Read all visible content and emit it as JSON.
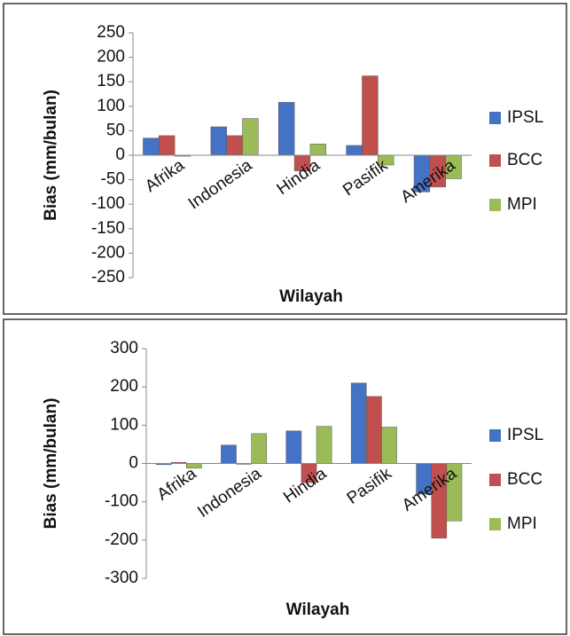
{
  "chart_data": [
    {
      "type": "bar",
      "categories": [
        "Afrika",
        "Indonesia",
        "Hindia",
        "Pasifik",
        "Amerika"
      ],
      "series": [
        {
          "name": "IPSL",
          "color": "#4472c4",
          "values": [
            35,
            58,
            108,
            20,
            -75
          ]
        },
        {
          "name": "BCC",
          "color": "#c0504d",
          "values": [
            40,
            40,
            -32,
            162,
            -65
          ]
        },
        {
          "name": "MPI",
          "color": "#9bbb59",
          "values": [
            -2,
            75,
            23,
            -20,
            -48
          ]
        }
      ],
      "y_label": "Bias (mm/bulan)",
      "x_label": "Wilayah",
      "ylim": [
        -250,
        250
      ],
      "yticks": [
        -250,
        -200,
        -150,
        -100,
        -50,
        0,
        50,
        100,
        150,
        200,
        250
      ],
      "grid": false,
      "legend": "right"
    },
    {
      "type": "bar",
      "categories": [
        "Afrika",
        "Indonesia",
        "Hindia",
        "Pasifik",
        "Amerika"
      ],
      "series": [
        {
          "name": "IPSL",
          "color": "#4472c4",
          "values": [
            -3,
            48,
            85,
            210,
            -80
          ]
        },
        {
          "name": "BCC",
          "color": "#c0504d",
          "values": [
            3,
            -2,
            -50,
            175,
            -195
          ]
        },
        {
          "name": "MPI",
          "color": "#9bbb59",
          "values": [
            -12,
            78,
            97,
            95,
            -150
          ]
        }
      ],
      "y_label": "Bias (mm/bulan)",
      "x_label": "Wilayah",
      "ylim": [
        -300,
        300
      ],
      "yticks": [
        -300,
        -200,
        -100,
        0,
        100,
        200,
        300
      ],
      "grid": false,
      "legend": "right"
    }
  ]
}
